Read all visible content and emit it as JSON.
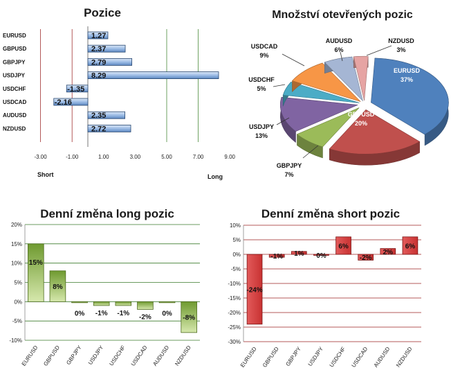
{
  "chart_data": [
    {
      "id": "positions",
      "type": "bar",
      "orientation": "horizontal",
      "title": "Pozice",
      "categories": [
        "EURUSD",
        "GBPUSD",
        "GBPJPY",
        "USDJPY",
        "USDCHF",
        "USDCAD",
        "AUDUSD",
        "NZDUSD"
      ],
      "values": [
        1.27,
        2.37,
        2.79,
        8.29,
        -1.35,
        -2.16,
        2.35,
        2.72
      ],
      "value_labels": [
        "1.27",
        "2.37",
        "2.79",
        "8.29",
        "-1.35",
        "-2.16",
        "2.35",
        "2.72"
      ],
      "x_ticks": [
        "-3.00",
        "-1.00",
        "1.00",
        "3.00",
        "5.00",
        "7.00",
        "9.00"
      ],
      "xlim": [
        -3,
        9
      ],
      "left_label": "Short",
      "right_label": "Long",
      "grid": false,
      "colors": {
        "bar": "#8fb4e3",
        "bar_edge": "#27466f",
        "short_line": "#a03030",
        "long_line": "#4a8a3a"
      }
    },
    {
      "id": "open-interest",
      "type": "pie",
      "title": "Množství otevřených pozic",
      "slices": [
        {
          "label": "EURUSD",
          "value": 37,
          "pct": "37%",
          "color": "#4f81bd"
        },
        {
          "label": "GBPUSD",
          "value": 20,
          "pct": "20%",
          "color": "#c0504d"
        },
        {
          "label": "GBPJPY",
          "value": 7,
          "pct": "7%",
          "color": "#9bbb59"
        },
        {
          "label": "USDJPY",
          "value": 13,
          "pct": "13%",
          "color": "#8064a2"
        },
        {
          "label": "USDCHF",
          "value": 5,
          "pct": "5%",
          "color": "#4bacc6"
        },
        {
          "label": "USDCAD",
          "value": 9,
          "pct": "9%",
          "color": "#f79646"
        },
        {
          "label": "AUDUSD",
          "value": 6,
          "pct": "6%",
          "color": "#a5b6d4"
        },
        {
          "label": "NZDUSD",
          "value": 3,
          "pct": "3%",
          "color": "#e6a4a3"
        }
      ],
      "style": "3d exploded"
    },
    {
      "id": "long-change",
      "type": "bar",
      "title": "Denní změna long pozic",
      "categories": [
        "EURUSD",
        "GBPUSD",
        "GBPJPY",
        "USDJPY",
        "USDCHF",
        "USDCAD",
        "AUDUSD",
        "NZDUSD"
      ],
      "values": [
        15,
        8,
        0,
        -1,
        -1,
        -2,
        0,
        -8
      ],
      "value_labels": [
        "15%",
        "8%",
        "0%",
        "-1%",
        "-1%",
        "-2%",
        "0%",
        "-8%"
      ],
      "y_ticks": [
        "20%",
        "15%",
        "10%",
        "5%",
        "0%",
        "-5%",
        "-10%"
      ],
      "ylim": [
        -10,
        20
      ],
      "grid": true,
      "colors": {
        "bar": "#8fb54a",
        "bar_light": "#d9eab0",
        "grid": "#3a7a2a"
      }
    },
    {
      "id": "short-change",
      "type": "bar",
      "title": "Denní změna short pozic",
      "categories": [
        "EURUSD",
        "GBPUSD",
        "GBPJPY",
        "USDJPY",
        "USDCHF",
        "USDCAD",
        "AUDUSD",
        "NZDUSD"
      ],
      "values": [
        -24,
        -1,
        1,
        0,
        6,
        -2,
        2,
        6
      ],
      "value_labels": [
        "-24%",
        "-1%",
        "1%",
        "0%",
        "6%",
        "-2%",
        "2%",
        "6%"
      ],
      "y_ticks": [
        "10%",
        "5%",
        "0%",
        "-5%",
        "-10%",
        "-15%",
        "-20%",
        "-25%",
        "-30%"
      ],
      "ylim": [
        -30,
        10
      ],
      "grid": true,
      "colors": {
        "bar": "#d64545",
        "bar_edge": "#8b1a1a",
        "grid": "#9b2020"
      }
    }
  ]
}
